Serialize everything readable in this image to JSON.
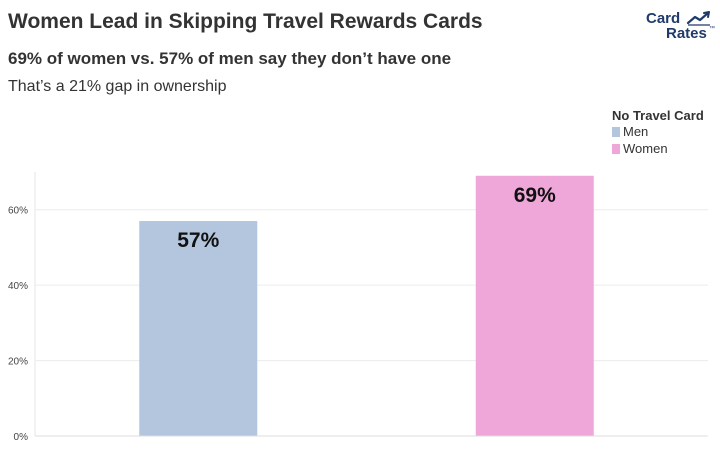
{
  "header": {
    "title": "Women Lead in Skipping Travel Rewards Cards",
    "subtitle": "69% of women vs. 57% of men say they don’t have one",
    "caption": "That’s a 21% gap in ownership"
  },
  "logo": {
    "line1": "Card",
    "line2": "Rates",
    "tm": "™",
    "color": "#1f3a6b"
  },
  "chart_data": {
    "type": "bar",
    "categories": [
      "Men",
      "Women"
    ],
    "values": [
      57,
      69
    ],
    "data_labels": [
      "57%",
      "69%"
    ],
    "colors": [
      "#b3c6de",
      "#efa6d8"
    ],
    "legend_title": "No Travel Card",
    "legend_placement": "top-right",
    "ylim": [
      0,
      70
    ],
    "yticks": [
      0,
      20,
      40,
      60
    ],
    "ytick_labels": [
      "0%",
      "20%",
      "40%",
      "60%"
    ],
    "grid": true,
    "xlabel": "",
    "ylabel": ""
  }
}
